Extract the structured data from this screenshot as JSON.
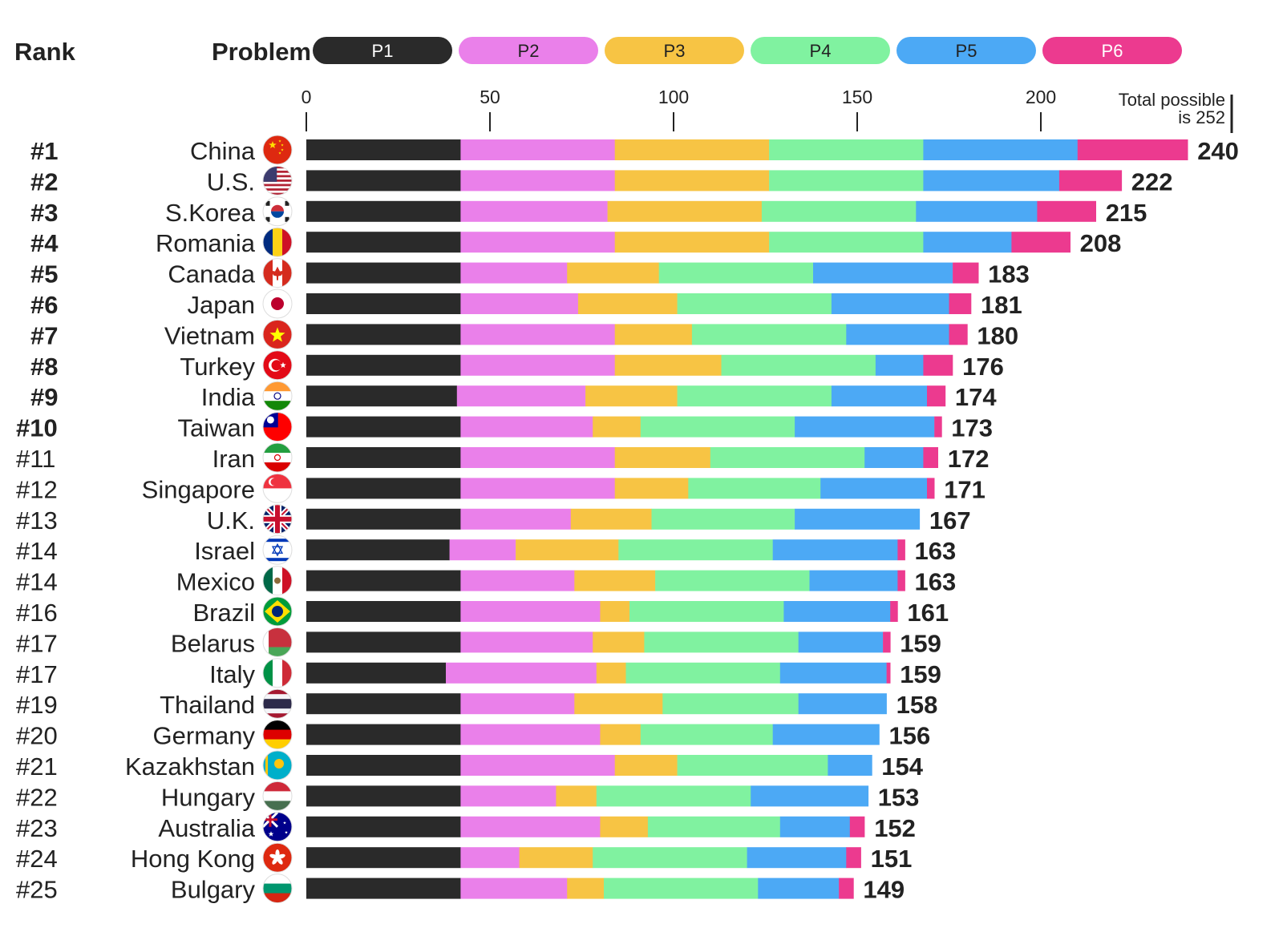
{
  "chart_data": {
    "type": "bar",
    "orientation": "horizontal",
    "stacked": true,
    "rank_header": "Rank",
    "problem_header": "Problem",
    "total_note_line1": "Total possible",
    "total_note_line2": "is 252",
    "xlim": [
      0,
      252
    ],
    "x_ticks": [
      0,
      50,
      100,
      150,
      200
    ],
    "legend_placement": "top",
    "series": [
      {
        "name": "P1",
        "color": "#2a2a2a",
        "label_color": "#ffffff"
      },
      {
        "name": "P2",
        "color": "#ea80ea",
        "label_color": "#222222"
      },
      {
        "name": "P3",
        "color": "#f7c444",
        "label_color": "#222222"
      },
      {
        "name": "P4",
        "color": "#80f2a0",
        "label_color": "#222222"
      },
      {
        "name": "P5",
        "color": "#4ca9f5",
        "label_color": "#222222"
      },
      {
        "name": "P6",
        "color": "#ec3a8f",
        "label_color": "#ffffff"
      }
    ],
    "rows": [
      {
        "rank": "#1",
        "country": "China",
        "flag": "china-flag",
        "values": [
          42,
          42,
          42,
          42,
          42,
          30
        ],
        "total": "240"
      },
      {
        "rank": "#2",
        "country": "U.S.",
        "flag": "us-flag",
        "values": [
          42,
          42,
          42,
          42,
          37,
          17
        ],
        "total": "222"
      },
      {
        "rank": "#3",
        "country": "S.Korea",
        "flag": "south-korea-flag",
        "values": [
          42,
          40,
          42,
          42,
          33,
          16
        ],
        "total": "215"
      },
      {
        "rank": "#4",
        "country": "Romania",
        "flag": "romania-flag",
        "values": [
          42,
          42,
          42,
          42,
          24,
          16
        ],
        "total": "208"
      },
      {
        "rank": "#5",
        "country": "Canada",
        "flag": "canada-flag",
        "values": [
          42,
          29,
          25,
          42,
          38,
          7
        ],
        "total": "183"
      },
      {
        "rank": "#6",
        "country": "Japan",
        "flag": "japan-flag",
        "values": [
          42,
          32,
          27,
          42,
          32,
          6
        ],
        "total": "181"
      },
      {
        "rank": "#7",
        "country": "Vietnam",
        "flag": "vietnam-flag",
        "values": [
          42,
          42,
          21,
          42,
          28,
          5
        ],
        "total": "180"
      },
      {
        "rank": "#8",
        "country": "Turkey",
        "flag": "turkey-flag",
        "values": [
          42,
          42,
          29,
          42,
          13,
          8
        ],
        "total": "176"
      },
      {
        "rank": "#9",
        "country": "India",
        "flag": "india-flag",
        "values": [
          41,
          35,
          25,
          42,
          26,
          5
        ],
        "total": "174"
      },
      {
        "rank": "#10",
        "country": "Taiwan",
        "flag": "taiwan-flag",
        "values": [
          42,
          36,
          13,
          42,
          38,
          2
        ],
        "total": "173"
      },
      {
        "rank": "#11",
        "country": "Iran",
        "flag": "iran-flag",
        "values": [
          42,
          42,
          26,
          42,
          16,
          4
        ],
        "total": "172"
      },
      {
        "rank": "#12",
        "country": "Singapore",
        "flag": "singapore-flag",
        "values": [
          42,
          42,
          20,
          36,
          29,
          2
        ],
        "total": "171"
      },
      {
        "rank": "#13",
        "country": "U.K.",
        "flag": "uk-flag",
        "values": [
          42,
          30,
          22,
          39,
          34,
          0
        ],
        "total": "167"
      },
      {
        "rank": "#14",
        "country": "Israel",
        "flag": "israel-flag",
        "values": [
          39,
          18,
          28,
          42,
          34,
          2
        ],
        "total": "163"
      },
      {
        "rank": "#14",
        "country": "Mexico",
        "flag": "mexico-flag",
        "values": [
          42,
          31,
          22,
          42,
          24,
          2
        ],
        "total": "163"
      },
      {
        "rank": "#16",
        "country": "Brazil",
        "flag": "brazil-flag",
        "values": [
          42,
          38,
          8,
          42,
          29,
          2
        ],
        "total": "161"
      },
      {
        "rank": "#17",
        "country": "Belarus",
        "flag": "belarus-flag",
        "values": [
          42,
          36,
          14,
          42,
          23,
          2
        ],
        "total": "159"
      },
      {
        "rank": "#17",
        "country": "Italy",
        "flag": "italy-flag",
        "values": [
          38,
          41,
          8,
          42,
          29,
          1
        ],
        "total": "159"
      },
      {
        "rank": "#19",
        "country": "Thailand",
        "flag": "thailand-flag",
        "values": [
          42,
          31,
          24,
          37,
          24,
          0
        ],
        "total": "158"
      },
      {
        "rank": "#20",
        "country": "Germany",
        "flag": "germany-flag",
        "values": [
          42,
          38,
          11,
          36,
          29,
          0
        ],
        "total": "156"
      },
      {
        "rank": "#21",
        "country": "Kazakhstan",
        "flag": "kazakhstan-flag",
        "values": [
          42,
          42,
          17,
          41,
          12,
          0
        ],
        "total": "154"
      },
      {
        "rank": "#22",
        "country": "Hungary",
        "flag": "hungary-flag",
        "values": [
          42,
          26,
          11,
          42,
          32,
          0
        ],
        "total": "153"
      },
      {
        "rank": "#23",
        "country": "Australia",
        "flag": "australia-flag",
        "values": [
          42,
          38,
          13,
          36,
          19,
          4
        ],
        "total": "152"
      },
      {
        "rank": "#24",
        "country": "Hong Kong",
        "flag": "hong-kong-flag",
        "values": [
          42,
          16,
          20,
          42,
          27,
          4
        ],
        "total": "151"
      },
      {
        "rank": "#25",
        "country": "Bulgary",
        "flag": "bulgaria-flag",
        "values": [
          42,
          29,
          10,
          42,
          22,
          4
        ],
        "total": "149"
      }
    ]
  }
}
